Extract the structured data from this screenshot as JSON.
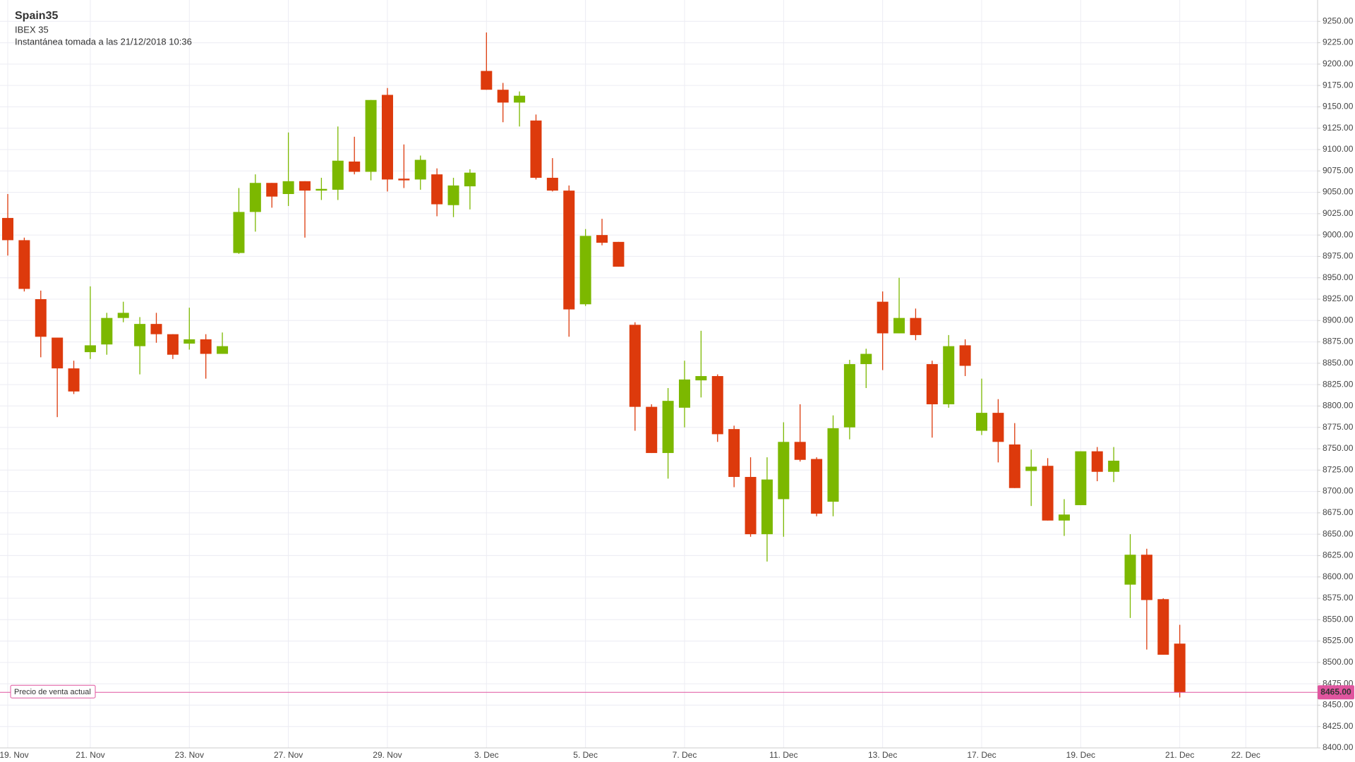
{
  "chart_data": {
    "type": "candlestick",
    "title": "Spain35",
    "subtitle": "IBEX 35",
    "snapshot": "Instantánea tomada a las 21/12/2018 10:36",
    "current_price": {
      "value": 8465,
      "label": "8465.00",
      "name": "Precio de venta actual",
      "color": "#e0559f"
    },
    "up_color": "#7cb800",
    "down_color": "#dd3a0c",
    "grid": true,
    "categories": [
      "19. Nov",
      null,
      null,
      null,
      null,
      "21. Nov",
      null,
      null,
      null,
      null,
      null,
      "23. Nov",
      null,
      null,
      null,
      null,
      null,
      "27. Nov",
      null,
      null,
      null,
      null,
      null,
      "29. Nov",
      null,
      null,
      null,
      null,
      null,
      "3. Dec",
      null,
      null,
      null,
      null,
      null,
      "5. Dec",
      null,
      null,
      null,
      null,
      null,
      "7. Dec",
      null,
      null,
      null,
      null,
      null,
      "11. Dec",
      null,
      null,
      null,
      null,
      null,
      "13. Dec",
      null,
      null,
      null,
      null,
      null,
      "17. Dec",
      null,
      null,
      null,
      null,
      null,
      "19. Dec",
      null,
      null,
      null,
      null,
      null,
      "21. Dec",
      null,
      null,
      null,
      "22. Dec"
    ],
    "open": [
      9020,
      8994,
      8925,
      8880,
      8844,
      8863,
      8872,
      8903,
      8870,
      8896,
      8884,
      8873,
      8878,
      8861,
      8979,
      9027,
      9061,
      9048,
      9063,
      9052,
      9053,
      9086,
      9074,
      9164,
      9066,
      9065,
      9071,
      9035,
      9057,
      9192,
      9170,
      9155,
      9134,
      9067,
      9052,
      8919,
      9000,
      8992,
      8895,
      8799,
      8745,
      8798,
      8830,
      8835,
      8773,
      8717,
      8650,
      8691,
      8758,
      8738,
      8688,
      8775,
      8849,
      8922,
      8885,
      8903,
      8849,
      8802,
      8871,
      8771,
      8792,
      8755,
      8724,
      8730,
      8666,
      8684,
      8747,
      8723,
      8591,
      8626,
      8574,
      8522,
      null,
      null,
      null,
      null
    ],
    "high": [
      9048,
      8997,
      8935,
      8880,
      8853,
      8940,
      8909,
      8922,
      8904,
      8909,
      8884,
      8915,
      8884,
      8886,
      9055,
      9071,
      9061,
      9120,
      9063,
      9067,
      9127,
      9115,
      9158,
      9172,
      9106,
      9093,
      9078,
      9067,
      9077,
      9237,
      9178,
      9168,
      9141,
      9090,
      9058,
      9007,
      9019,
      8992,
      8898,
      8802,
      8821,
      8853,
      8888,
      8837,
      8777,
      8740,
      8740,
      8781,
      8802,
      8740,
      8789,
      8854,
      8867,
      8934,
      8950,
      8914,
      8853,
      8883,
      8878,
      8832,
      8808,
      8780,
      8749,
      8739,
      8691,
      8747,
      8752,
      8752,
      8650,
      8633,
      8575,
      8544,
      null,
      null,
      null,
      null
    ],
    "low": [
      8976,
      8934,
      8857,
      8787,
      8814,
      8855,
      8860,
      8898,
      8837,
      8874,
      8855,
      8866,
      8832,
      8861,
      8978,
      9004,
      9032,
      9034,
      8997,
      9041,
      9041,
      9071,
      9064,
      9051,
      9055,
      9053,
      9022,
      9021,
      9030,
      9170,
      9132,
      9127,
      9065,
      9051,
      8881,
      8917,
      8988,
      8963,
      8771,
      8745,
      8715,
      8775,
      8810,
      8758,
      8705,
      8647,
      8618,
      8647,
      8735,
      8671,
      8671,
      8761,
      8821,
      8842,
      8885,
      8877,
      8763,
      8798,
      8835,
      8766,
      8734,
      8704,
      8683,
      8666,
      8648,
      8684,
      8712,
      8711,
      8552,
      8515,
      8509,
      8459,
      null,
      null,
      null,
      null
    ],
    "close": [
      8994,
      8937,
      8881,
      8844,
      8817,
      8871,
      8903,
      8909,
      8896,
      8884,
      8860,
      8878,
      8861,
      8870,
      9027,
      9061,
      9045,
      9063,
      9052,
      9054,
      9087,
      9074,
      9158,
      9065,
      9064,
      9088,
      9036,
      9058,
      9073,
      9170,
      9155,
      9163,
      9067,
      9052,
      8913,
      8999,
      8991,
      8963,
      8799,
      8745,
      8806,
      8831,
      8835,
      8767,
      8717,
      8650,
      8714,
      8758,
      8737,
      8674,
      8774,
      8849,
      8861,
      8885,
      8903,
      8883,
      8802,
      8870,
      8847,
      8792,
      8758,
      8704,
      8729,
      8666,
      8673,
      8747,
      8723,
      8736,
      8626,
      8573,
      8509,
      8465,
      null,
      null,
      null,
      null
    ],
    "ylim": [
      8400,
      9275
    ],
    "yticks": [
      {
        "value": 8400,
        "label": "8400.00"
      },
      {
        "value": 8425,
        "label": "8425.00"
      },
      {
        "value": 8450,
        "label": "8450.00"
      },
      {
        "value": 8475,
        "label": "8475.00"
      },
      {
        "value": 8500,
        "label": "8500.00"
      },
      {
        "value": 8525,
        "label": "8525.00"
      },
      {
        "value": 8550,
        "label": "8550.00"
      },
      {
        "value": 8575,
        "label": "8575.00"
      },
      {
        "value": 8600,
        "label": "8600.00"
      },
      {
        "value": 8625,
        "label": "8625.00"
      },
      {
        "value": 8650,
        "label": "8650.00"
      },
      {
        "value": 8675,
        "label": "8675.00"
      },
      {
        "value": 8700,
        "label": "8700.00"
      },
      {
        "value": 8725,
        "label": "8725.00"
      },
      {
        "value": 8750,
        "label": "8750.00"
      },
      {
        "value": 8775,
        "label": "8775.00"
      },
      {
        "value": 8800,
        "label": "8800.00"
      },
      {
        "value": 8825,
        "label": "8825.00"
      },
      {
        "value": 8850,
        "label": "8850.00"
      },
      {
        "value": 8875,
        "label": "8875.00"
      },
      {
        "value": 8900,
        "label": "8900.00"
      },
      {
        "value": 8925,
        "label": "8925.00"
      },
      {
        "value": 8950,
        "label": "8950.00"
      },
      {
        "value": 8975,
        "label": "8975.00"
      },
      {
        "value": 9000,
        "label": "9000.00"
      },
      {
        "value": 9025,
        "label": "9025.00"
      },
      {
        "value": 9050,
        "label": "9050.00"
      },
      {
        "value": 9075,
        "label": "9075.00"
      },
      {
        "value": 9100,
        "label": "9100.00"
      },
      {
        "value": 9125,
        "label": "9125.00"
      },
      {
        "value": 9150,
        "label": "9150.00"
      },
      {
        "value": 9175,
        "label": "9175.00"
      },
      {
        "value": 9200,
        "label": "9200.00"
      },
      {
        "value": 9225,
        "label": "9225.00"
      },
      {
        "value": 9250,
        "label": "9250.00"
      }
    ]
  }
}
